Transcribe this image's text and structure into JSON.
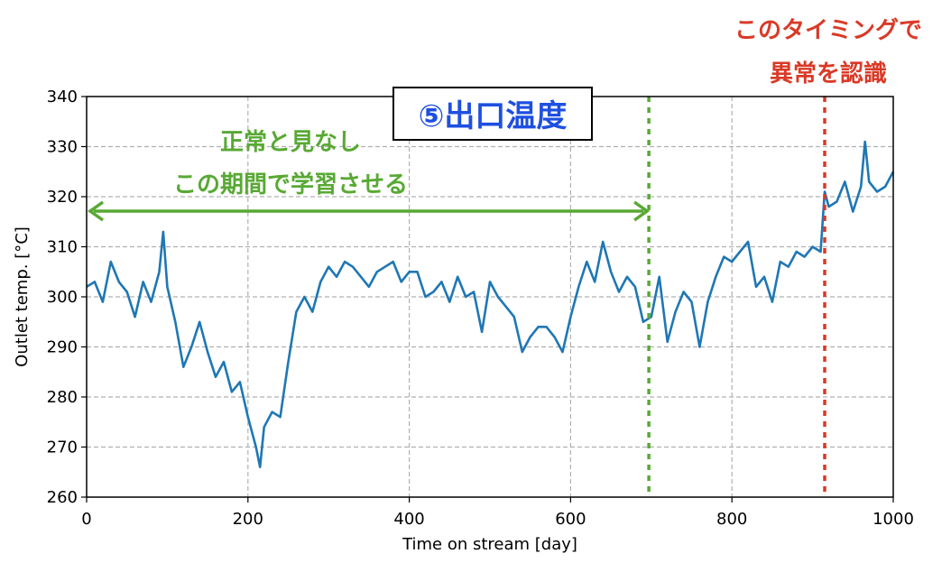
{
  "chart_data": {
    "type": "line",
    "title": "⑤出口温度",
    "xlabel": "Time on stream [day]",
    "ylabel": "Outlet temp. [°C]",
    "xlim": [
      0,
      1000
    ],
    "ylim": [
      260,
      340
    ],
    "xticks": [
      "0",
      "200",
      "400",
      "600",
      "800",
      "1000"
    ],
    "yticks": [
      "260",
      "270",
      "280",
      "290",
      "300",
      "310",
      "320",
      "330",
      "340"
    ],
    "grid": true,
    "series": [
      {
        "color": "#1f77b4",
        "x": [
          0,
          10,
          20,
          30,
          40,
          50,
          60,
          70,
          80,
          90,
          95,
          100,
          110,
          120,
          130,
          140,
          150,
          160,
          170,
          180,
          190,
          200,
          210,
          215,
          220,
          230,
          240,
          250,
          260,
          270,
          280,
          290,
          300,
          310,
          320,
          330,
          340,
          350,
          360,
          370,
          380,
          390,
          400,
          410,
          420,
          430,
          440,
          450,
          460,
          470,
          480,
          490,
          500,
          510,
          520,
          530,
          540,
          550,
          560,
          570,
          580,
          590,
          600,
          610,
          620,
          630,
          640,
          650,
          660,
          670,
          680,
          690,
          700,
          710,
          720,
          730,
          740,
          750,
          760,
          770,
          780,
          790,
          800,
          810,
          820,
          830,
          840,
          850,
          860,
          870,
          880,
          890,
          900,
          910,
          915,
          920,
          930,
          940,
          950,
          960,
          965,
          970,
          980,
          990,
          1000
        ],
        "values": [
          302,
          303,
          299,
          307,
          303,
          301,
          296,
          303,
          299,
          305,
          313,
          302,
          295,
          286,
          290,
          295,
          289,
          284,
          287,
          281,
          283,
          276,
          270,
          266,
          274,
          277,
          276,
          287,
          297,
          300,
          297,
          303,
          306,
          304,
          307,
          306,
          304,
          302,
          305,
          306,
          307,
          303,
          305,
          305,
          300,
          301,
          303,
          299,
          304,
          300,
          301,
          293,
          303,
          300,
          298,
          296,
          289,
          292,
          294,
          294,
          292,
          289,
          296,
          302,
          307,
          303,
          311,
          305,
          301,
          304,
          302,
          295,
          296,
          304,
          291,
          297,
          301,
          299,
          290,
          299,
          304,
          308,
          307,
          309,
          311,
          302,
          304,
          299,
          307,
          306,
          309,
          308,
          310,
          309,
          321,
          318,
          319,
          323,
          317,
          322,
          331,
          323,
          321,
          322,
          325
        ]
      }
    ],
    "annotations": {
      "normal_text_line1": "正常と見なし",
      "normal_text_line2": "この期間で学習させる",
      "normal_range": [
        0,
        697
      ],
      "normal_marker_x": 697,
      "normal_color": "#58a934",
      "anomaly_text_line1": "このタイミングで",
      "anomaly_text_line2": "異常を認識",
      "anomaly_marker_x": 915,
      "anomaly_color": "#d93a27",
      "title_color": "#1e4fe0"
    }
  }
}
